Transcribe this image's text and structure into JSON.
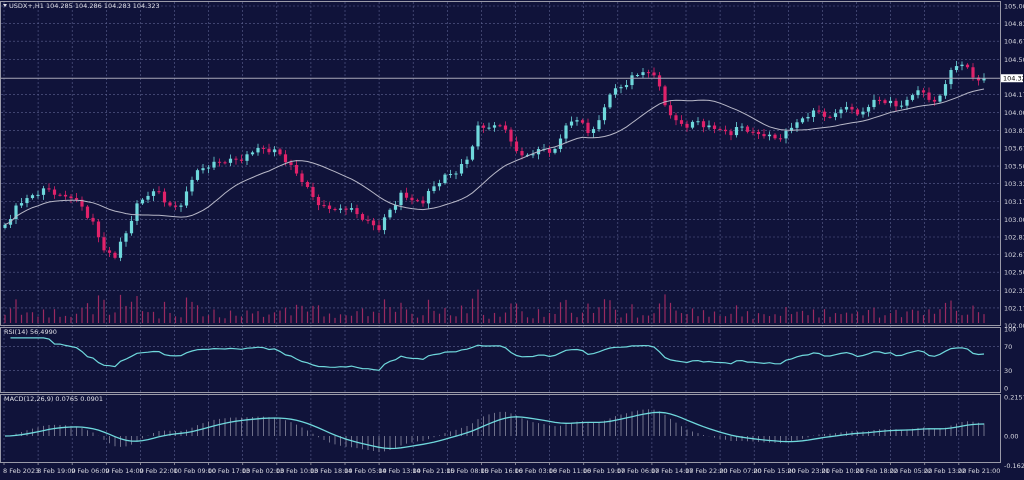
{
  "header": {
    "title": "USDX+,H1  104.285 104.286 104.283 104.323",
    "rsi_label": "RSI(14) 56.4990",
    "macd_label": "MACD(12,26,9) 0.0765 0.0901"
  },
  "colors": {
    "background": "#10133a",
    "grid": "#5c6290",
    "bull": "#6fd8dc",
    "bear": "#e0226a",
    "ma": "#b8b8c8",
    "volume": "#9a2a60",
    "indicator": "#6fd8dc"
  },
  "chart_data": {
    "type": "candlestick",
    "symbol": "USDX+",
    "timeframe": "H1",
    "current_price": "104.323",
    "ylim": [
      102.005,
      105.0
    ],
    "price_ticks": [
      "105.000",
      "104.835",
      "104.670",
      "104.500",
      "104.170",
      "104.000",
      "103.835",
      "103.670",
      "103.500",
      "103.335",
      "103.170",
      "103.000",
      "102.835",
      "102.670",
      "102.505",
      "102.335",
      "102.170",
      "102.005"
    ],
    "rsi_ticks": [
      "100",
      "70",
      "30",
      "0"
    ],
    "macd_ticks": [
      "0.2157",
      "0.00",
      "-0.1622"
    ],
    "time_ticks": [
      "8 Feb 2023",
      "8 Feb 19:00",
      "9 Feb 06:00",
      "9 Feb 14:00",
      "9 Feb 22:00",
      "10 Feb 09:00",
      "10 Feb 17:00",
      "13 Feb 02:00",
      "13 Feb 10:00",
      "13 Feb 18:00",
      "14 Feb 05:00",
      "14 Feb 13:00",
      "14 Feb 21:00",
      "15 Feb 08:00",
      "15 Feb 16:00",
      "16 Feb 03:00",
      "16 Feb 11:00",
      "16 Feb 19:00",
      "17 Feb 06:00",
      "17 Feb 14:00",
      "17 Feb 22:00",
      "20 Feb 07:00",
      "20 Feb 15:00",
      "20 Feb 23:00",
      "21 Feb 10:00",
      "21 Feb 18:00",
      "22 Feb 05:00",
      "22 Feb 13:00",
      "22 Feb 21:00"
    ],
    "closes": [
      102.95,
      103.13,
      103.2,
      103.23,
      103.28,
      103.23,
      103.2,
      103.12,
      102.98,
      102.71,
      102.64,
      102.87,
      103.15,
      103.22,
      103.26,
      103.13,
      103.13,
      103.37,
      103.48,
      103.54,
      103.53,
      103.56,
      103.61,
      103.67,
      103.63,
      103.61,
      103.51,
      103.35,
      103.21,
      103.13,
      103.09,
      103.09,
      103.05,
      102.99,
      102.9,
      103.09,
      103.25,
      103.18,
      103.15,
      103.31,
      103.42,
      103.43,
      103.56,
      103.88,
      103.86,
      103.88,
      103.73,
      103.6,
      103.61,
      103.66,
      103.66,
      103.88,
      103.93,
      103.81,
      103.93,
      104.17,
      104.24,
      104.35,
      104.38,
      104.35,
      104.07,
      103.93,
      103.86,
      103.92,
      103.88,
      103.84,
      103.79,
      103.87,
      103.82,
      103.78,
      103.76,
      103.83,
      103.91,
      103.96,
      104.01,
      103.96,
      104.03,
      104.03,
      104.01,
      104.12,
      104.09,
      104.06,
      104.12,
      104.21,
      104.12,
      104.16,
      104.4,
      104.45,
      104.33,
      104.323
    ]
  }
}
